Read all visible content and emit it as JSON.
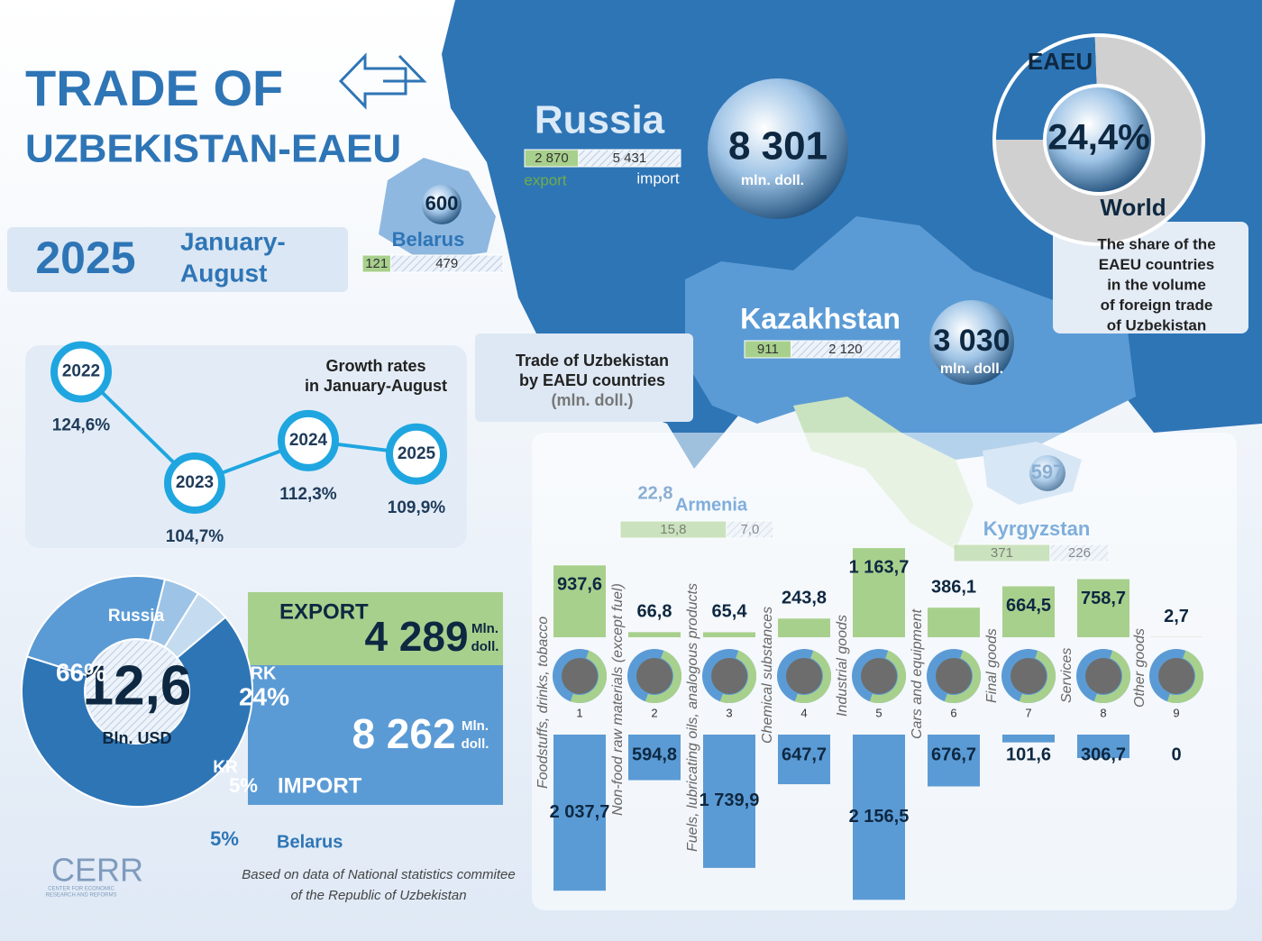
{
  "header": {
    "title": [
      "TRADE OF",
      "UZBEKISTAN-EAEU"
    ],
    "year": "2025",
    "period": [
      "January-",
      "August"
    ]
  },
  "growth": {
    "title": [
      "Growth rates",
      "in January-August"
    ],
    "points": [
      {
        "year": "2022",
        "rate": 124.6,
        "rate_label": "124,6%"
      },
      {
        "year": "2023",
        "rate": 104.7,
        "rate_label": "104,7%"
      },
      {
        "year": "2024",
        "rate": 112.3,
        "rate_label": "112,3%"
      },
      {
        "year": "2025",
        "rate": 109.9,
        "rate_label": "109,9%"
      }
    ]
  },
  "map": {
    "caption": [
      "Trade of Uzbekistan",
      "by EAEU countries",
      "(mln. doll.)"
    ],
    "export_label": "export",
    "import_label": "import",
    "unit": "mln. doll.",
    "countries": [
      {
        "name": "Russia",
        "total": "8 301",
        "export": 2870,
        "export_label": "2 870",
        "import": 5431,
        "import_label": "5 431"
      },
      {
        "name": "Belarus",
        "total": "600",
        "export": 121,
        "export_label": "121",
        "import": 479,
        "import_label": "479"
      },
      {
        "name": "Kazakhstan",
        "total": "3 030",
        "export": 911,
        "export_label": "911",
        "import": 2120,
        "import_label": "2 120"
      },
      {
        "name": "Armenia",
        "total": "22,8",
        "export": 15.8,
        "export_label": "15,8",
        "import": 7,
        "import_label": "7,0"
      },
      {
        "name": "Kyrgyzstan",
        "total": "597",
        "export": 371,
        "export_label": "371",
        "import": 226,
        "import_label": "226"
      }
    ]
  },
  "share": {
    "inner": "EAEU",
    "outer": "World",
    "value": 24.4,
    "value_label": "24,4%",
    "note": [
      "The share of the",
      "EAEU countries",
      "in the volume",
      "of foreign trade",
      "of Uzbekistan"
    ]
  },
  "total": {
    "value": "12,6",
    "unit": "Bln. USD",
    "segments": [
      {
        "name": "Russia",
        "value": 66,
        "label": "66%",
        "color": "#2e75b6"
      },
      {
        "name": "RK",
        "value": 24,
        "label": "24%",
        "color": "#5b9bd5"
      },
      {
        "name": "KR",
        "value": 5,
        "label": "5%",
        "color": "#9dc3e6"
      },
      {
        "name": "Belarus",
        "value": 5,
        "label": "5%",
        "color": "#c5dcf0"
      }
    ],
    "export": {
      "title": "EXPORT",
      "value": "4 289",
      "unit": [
        "Mln.",
        "doll."
      ]
    },
    "import": {
      "title": "IMPORT",
      "value": "8 262",
      "unit": [
        "Mln.",
        "doll."
      ]
    }
  },
  "chart_data": {
    "type": "bar",
    "categories": [
      "Foodstuffs, drinks, tobacco",
      "Non-food raw materials (except fuel)",
      "Fuels, lubricating oils, analogous products",
      "Chemical substances",
      "Industrial goods",
      "Cars and equipment",
      "Final goods",
      "Services",
      "Other goods"
    ],
    "category_numbers": [
      "1",
      "2",
      "3",
      "4",
      "5",
      "6",
      "7",
      "8",
      "9"
    ],
    "series": [
      {
        "color": "#a8d08d",
        "values": [
          937.6,
          66.8,
          65.4,
          243.8,
          1163.7,
          386.1,
          664.5,
          758.7,
          2.7
        ],
        "value_labels": [
          "937,6",
          "66,8",
          "65,4",
          "243,8",
          "1 163,7",
          "386,1",
          "664,5",
          "758,7",
          "2,7"
        ]
      },
      {
        "color": "#5b9bd5",
        "values": [
          2037.7,
          594.8,
          1739.9,
          647.7,
          2156.5,
          676.7,
          101.6,
          306.7,
          0
        ],
        "value_labels": [
          "2 037,7",
          "594,8",
          "1 739,9",
          "647,7",
          "2 156,5",
          "676,7",
          "101,6",
          "306,7",
          "0"
        ]
      }
    ]
  },
  "footer": {
    "logo": "CERR",
    "logo_sub": [
      "CENTER FOR ECONOMIC",
      "RESEARCH AND REFORMS"
    ],
    "source": [
      "Based on data of National statistics commitee",
      "of the Republic of Uzbekistan"
    ]
  }
}
